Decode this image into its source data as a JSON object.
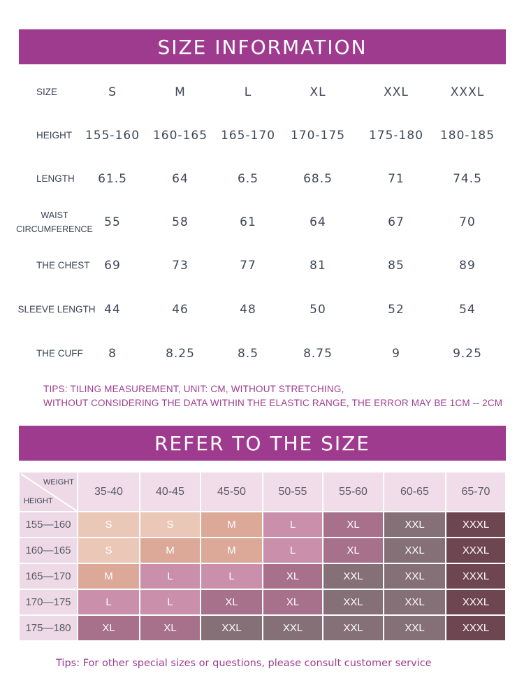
{
  "size_information": {
    "title": "SIZE INFORMATION",
    "header_label": "SIZE",
    "sizes": [
      "S",
      "M",
      "L",
      "XL",
      "XXL",
      "XXXL"
    ],
    "rows": [
      {
        "label": "HEIGHT",
        "values": [
          "155-160",
          "160-165",
          "165-170",
          "170-175",
          "175-180",
          "180-185"
        ]
      },
      {
        "label": "LENGTH",
        "values": [
          "61.5",
          "64",
          "6.5",
          "68.5",
          "71",
          "74.5"
        ]
      },
      {
        "label": "WAIST CIRCUMFERENCE",
        "values": [
          "55",
          "58",
          "61",
          "64",
          "67",
          "70"
        ]
      },
      {
        "label": "THE CHEST",
        "values": [
          "69",
          "73",
          "77",
          "81",
          "85",
          "89"
        ]
      },
      {
        "label": "SLEEVE LENGTH",
        "values": [
          "44",
          "46",
          "48",
          "50",
          "52",
          "54"
        ]
      },
      {
        "label": "THE CUFF",
        "values": [
          "8",
          "8.25",
          "8.5",
          "8.75",
          "9",
          "9.25"
        ]
      }
    ],
    "tips_line1": "TIPS: TILING MEASUREMENT, UNIT: CM, WITHOUT STRETCHING,",
    "tips_line2": "WITHOUT CONSIDERING THE DATA WITHIN THE ELASTIC RANGE, THE ERROR MAY BE 1CM -- 2CM"
  },
  "refer": {
    "title": "REFER TO THE SIZE",
    "weight_label": "WEIGHT",
    "height_label": "HEIGHT",
    "weights": [
      "35-40",
      "40-45",
      "45-50",
      "50-55",
      "55-60",
      "60-65",
      "65-70"
    ],
    "heights": [
      "155—160",
      "160—165",
      "165—170",
      "170—175",
      "175—180"
    ],
    "grid": [
      [
        "S",
        "S",
        "M",
        "L",
        "XL",
        "XXL",
        "XXXL"
      ],
      [
        "S",
        "M",
        "M",
        "L",
        "XL",
        "XXL",
        "XXXL"
      ],
      [
        "M",
        "L",
        "L",
        "XL",
        "XXL",
        "XXL",
        "XXXL"
      ],
      [
        "L",
        "L",
        "XL",
        "XL",
        "XXL",
        "XXL",
        "XXXL"
      ],
      [
        "XL",
        "XL",
        "XXL",
        "XXL",
        "XXL",
        "XXL",
        "XXXL"
      ]
    ],
    "colors": {
      "S": "#ebc7b8",
      "M": "#dca898",
      "L": "#c98fab",
      "XL": "#a7708b",
      "XXL": "#857077",
      "XXXL": "#6e4651"
    },
    "tip": "Tips: For other special sizes or questions, please consult customer service"
  },
  "accent_color": "#9e3b8f"
}
